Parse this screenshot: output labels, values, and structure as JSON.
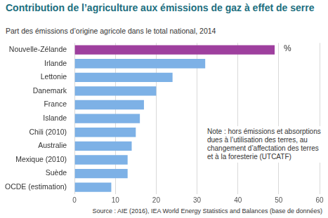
{
  "chart_data": {
    "type": "bar",
    "orientation": "horizontal",
    "title": "Contribution de l’agriculture aux émissions de gaz à effet de serre",
    "subtitle": "Part des émissions d’origine agricole dans le total national, 2014",
    "categories": [
      "Nouvelle-Zélande",
      "Irlande",
      "Lettonie",
      "Danemark",
      "France",
      "Islande",
      "Chili (2010)",
      "Australie",
      "Mexique (2010)",
      "Suède",
      "OCDE (estimation)"
    ],
    "values": [
      49,
      32,
      24,
      20,
      17,
      16,
      15,
      14,
      13,
      13,
      9
    ],
    "colors": [
      "#9e3f9e",
      "#7db1e6",
      "#7db1e6",
      "#7db1e6",
      "#7db1e6",
      "#7db1e6",
      "#7db1e6",
      "#7db1e6",
      "#7db1e6",
      "#7db1e6",
      "#7db1e6"
    ],
    "xlim": [
      0,
      60
    ],
    "xticks": [
      0,
      10,
      20,
      30,
      40,
      50,
      60
    ],
    "grid": true,
    "unit_label": "%",
    "note": "Note : hors émissions et absorptions dues à l’utilisation des terres, au changement d’affectation des terres et à la foresterie (UTCATF)",
    "source": "Source : AIE (2016), IEA World Energy Statistics and Balances (base de données)"
  }
}
